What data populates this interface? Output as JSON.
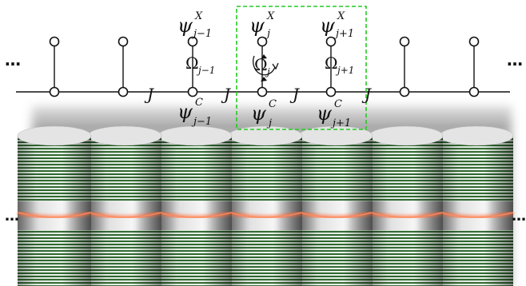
{
  "lattice": {
    "sites": [
      {
        "index": "j-1",
        "exciton": {
          "base": "ψ",
          "sup": "X",
          "sub": "j−1"
        },
        "coupling": {
          "base": "Ω",
          "sub": "j−1"
        },
        "cavity": {
          "base": "ψ",
          "sup": "C",
          "sub": "j−1"
        }
      },
      {
        "index": "j",
        "exciton": {
          "base": "ψ",
          "sup": "X",
          "sub": "j"
        },
        "coupling": {
          "base": "Ω",
          "sub": "j"
        },
        "cavity": {
          "base": "ψ",
          "sup": "C",
          "sub": "j"
        }
      },
      {
        "index": "j+1",
        "exciton": {
          "base": "ψ",
          "sup": "X",
          "sub": "j+1"
        },
        "coupling": {
          "base": "Ω",
          "sub": "j+1"
        },
        "cavity": {
          "base": "ψ",
          "sup": "C",
          "sub": "j+1"
        }
      }
    ],
    "hopping_label": "J",
    "ellipsis": "…",
    "node_count": 7
  },
  "colors": {
    "highlight_box": "#22cc22",
    "stripe_dark": "#1e5a1e",
    "stripe_light": "#eaf3ea",
    "cavity_glow": "#ff6a3a",
    "ink": "#111111"
  },
  "pillars": {
    "count": 7
  }
}
